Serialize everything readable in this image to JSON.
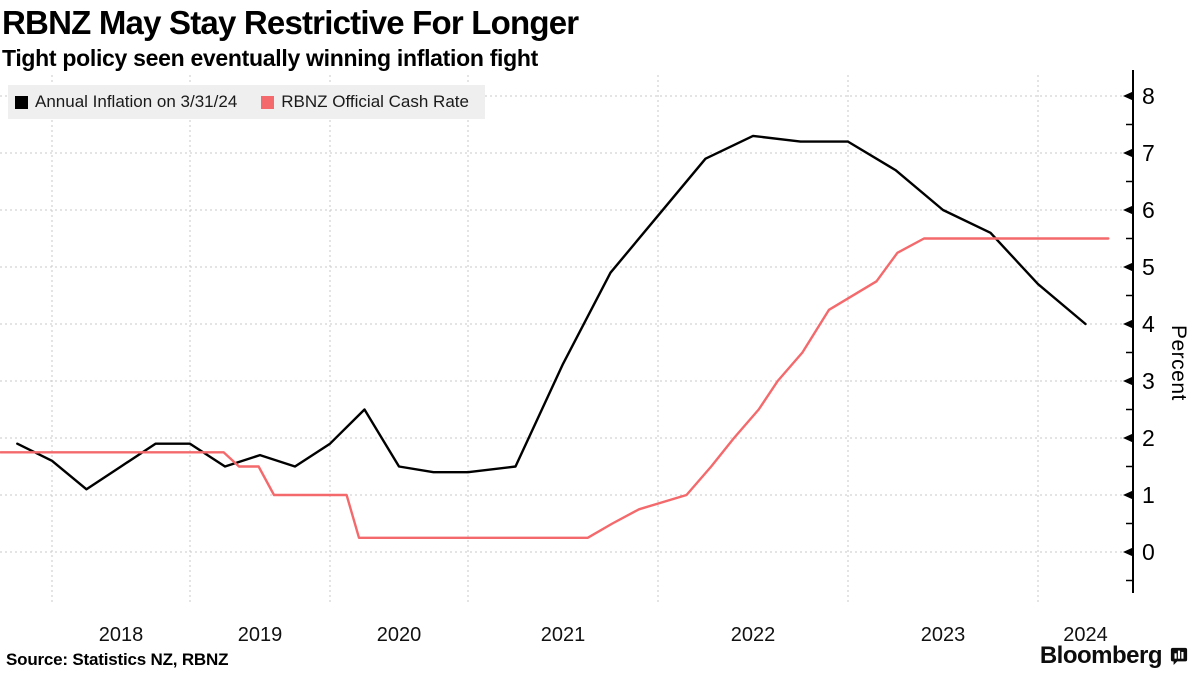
{
  "header": {
    "title": "RBNZ May Stay Restrictive For Longer",
    "subtitle": "Tight policy seen eventually winning inflation fight"
  },
  "legend": {
    "items": [
      {
        "label": "Annual Inflation on 3/31/24",
        "color": "#000000"
      },
      {
        "label": "RBNZ Official Cash Rate",
        "color": "#f4696b"
      }
    ]
  },
  "footer": {
    "source": "Source: Statistics NZ, RBNZ",
    "brand": "Bloomberg"
  },
  "chart_data": {
    "type": "line",
    "title": "RBNZ May Stay Restrictive For Longer",
    "subtitle": "Tight policy seen eventually winning inflation fight",
    "xlabel": "",
    "ylabel": "Percent",
    "ylim": [
      0,
      8
    ],
    "yticks": [
      0,
      1,
      2,
      3,
      4,
      5,
      6,
      7,
      8
    ],
    "x_year_labels": [
      "2018",
      "2019",
      "2020",
      "2021",
      "2022",
      "2023",
      "2024"
    ],
    "x_range_years": [
      2017.63,
      2024.37
    ],
    "grid": true,
    "legend_position": "top-left",
    "series": [
      {
        "name": "Annual Inflation on 3/31/24",
        "color": "#000000",
        "unit": "percent",
        "points": [
          [
            2017.75,
            1.9
          ],
          [
            2018.0,
            1.6
          ],
          [
            2018.25,
            1.1
          ],
          [
            2018.5,
            1.5
          ],
          [
            2018.75,
            1.9
          ],
          [
            2019.0,
            1.9
          ],
          [
            2019.25,
            1.5
          ],
          [
            2019.5,
            1.7
          ],
          [
            2019.75,
            1.5
          ],
          [
            2020.0,
            1.9
          ],
          [
            2020.25,
            2.5
          ],
          [
            2020.5,
            1.5
          ],
          [
            2020.75,
            1.4
          ],
          [
            2021.0,
            1.4
          ],
          [
            2021.25,
            1.5
          ],
          [
            2021.5,
            3.3
          ],
          [
            2021.75,
            4.9
          ],
          [
            2022.0,
            5.9
          ],
          [
            2022.25,
            6.9
          ],
          [
            2022.5,
            7.3
          ],
          [
            2022.75,
            7.2
          ],
          [
            2023.0,
            7.2
          ],
          [
            2023.25,
            6.7
          ],
          [
            2023.5,
            6.0
          ],
          [
            2023.75,
            5.6
          ],
          [
            2024.0,
            4.7
          ],
          [
            2024.25,
            4.0
          ]
        ]
      },
      {
        "name": "RBNZ Official Cash Rate",
        "color": "#f4696b",
        "unit": "percent",
        "points": [
          [
            2017.63,
            1.75
          ],
          [
            2019.24,
            1.75
          ],
          [
            2019.35,
            1.5
          ],
          [
            2019.49,
            1.5
          ],
          [
            2019.6,
            1.0
          ],
          [
            2020.12,
            1.0
          ],
          [
            2020.21,
            0.25
          ],
          [
            2021.63,
            0.25
          ],
          [
            2021.76,
            0.5
          ],
          [
            2021.9,
            0.75
          ],
          [
            2022.15,
            1.0
          ],
          [
            2022.28,
            1.5
          ],
          [
            2022.4,
            2.0
          ],
          [
            2022.53,
            2.5
          ],
          [
            2022.63,
            3.0
          ],
          [
            2022.76,
            3.5
          ],
          [
            2022.9,
            4.25
          ],
          [
            2023.15,
            4.75
          ],
          [
            2023.26,
            5.25
          ],
          [
            2023.4,
            5.5
          ],
          [
            2024.37,
            5.5
          ]
        ]
      }
    ]
  }
}
